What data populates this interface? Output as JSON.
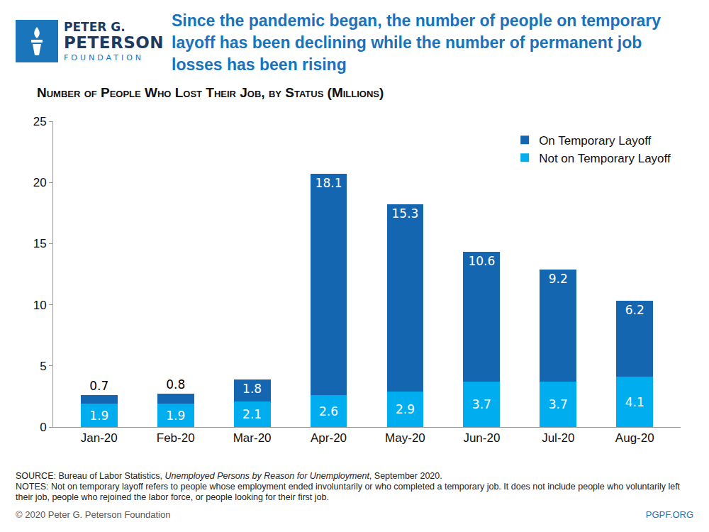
{
  "header": {
    "logo": [
      "PETER G.",
      "PETERSON",
      "FOUNDATION"
    ],
    "title": "Since the pandemic began, the number of people on temporary layoff has been declining while the number of permanent job losses has been rising"
  },
  "chart_data": {
    "type": "bar",
    "subtitle": "Number of People Who Lost Their Job, by Status (Millions)",
    "categories": [
      "Jan-20",
      "Feb-20",
      "Mar-20",
      "Apr-20",
      "May-20",
      "Jun-20",
      "Jul-20",
      "Aug-20"
    ],
    "series": [
      {
        "name": "Not on Temporary Layoff",
        "color": "#00aeef",
        "values": [
          1.9,
          1.9,
          2.1,
          2.6,
          2.9,
          3.7,
          3.7,
          4.1
        ]
      },
      {
        "name": "On Temporary Layoff",
        "color": "#1466b0",
        "values": [
          0.7,
          0.8,
          1.8,
          18.1,
          15.3,
          10.6,
          9.2,
          6.2
        ]
      }
    ],
    "stacked": true,
    "data_labels": true,
    "grid": false,
    "legend": "upper right",
    "ylim": [
      0,
      25
    ],
    "yticks": [
      0,
      5,
      10,
      15,
      20,
      25
    ]
  },
  "footer": {
    "source_prefix": "SOURCE: Bureau of Labor Statistics, ",
    "source_title": "Unemployed Persons by Reason for Unemployment",
    "source_suffix": ", September 2020.",
    "notes": "NOTES: Not on temporary layoff refers to people whose employment ended involuntarily or who completed a temporary job. It does not include people who voluntarily left their job, people who rejoined the labor force, or people looking for their first job.",
    "copyright": "© 2020 Peter G. Peterson Foundation",
    "site": "PGPF.ORG"
  }
}
